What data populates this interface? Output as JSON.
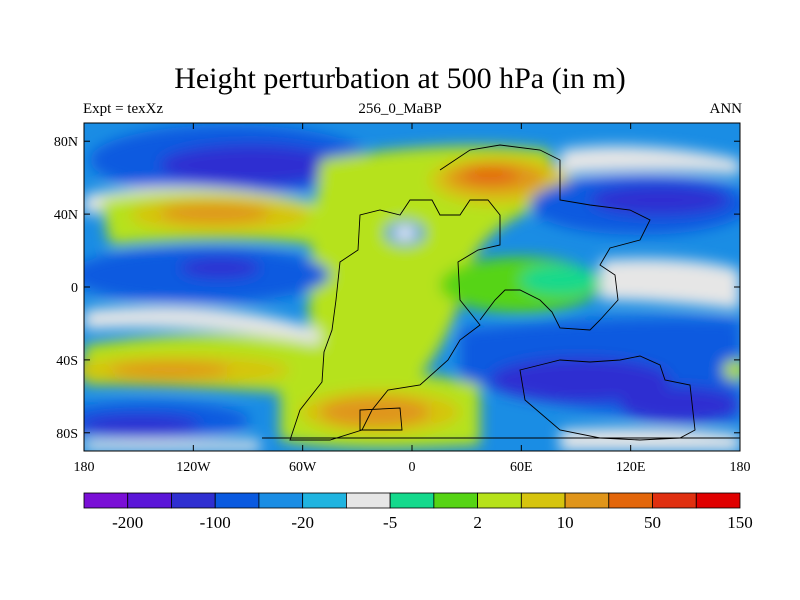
{
  "title": "Height perturbation at 500 hPa (in m)",
  "left_label": "Expt = texXz",
  "center_label": "256_0_MaBP",
  "right_label": "ANN",
  "y_ticks": [
    "80N",
    "40N",
    "0",
    "40S",
    "80S"
  ],
  "x_ticks": [
    "180",
    "120W",
    "60W",
    "0",
    "60E",
    "120E",
    "180"
  ],
  "colorbar": {
    "labels": [
      "-200",
      "-100",
      "-20",
      "-5",
      "2",
      "10",
      "50",
      "150"
    ],
    "colors": [
      "#7a0fd6",
      "#5b16d8",
      "#2f2fd1",
      "#0a5ae0",
      "#1a8de4",
      "#20b4e0",
      "#e6e6e6",
      "#14d98c",
      "#56d414",
      "#b6e21a",
      "#d6c40e",
      "#e0951a",
      "#e3660a",
      "#e03010",
      "#e00000"
    ]
  },
  "chart_data": {
    "type": "heatmap",
    "xlim": [
      -180,
      180
    ],
    "ylim": [
      -90,
      90
    ],
    "x_ticks": [
      -180,
      -120,
      -60,
      0,
      60,
      120,
      180
    ],
    "y_ticks": [
      80,
      40,
      0,
      -40,
      -80
    ]
  }
}
